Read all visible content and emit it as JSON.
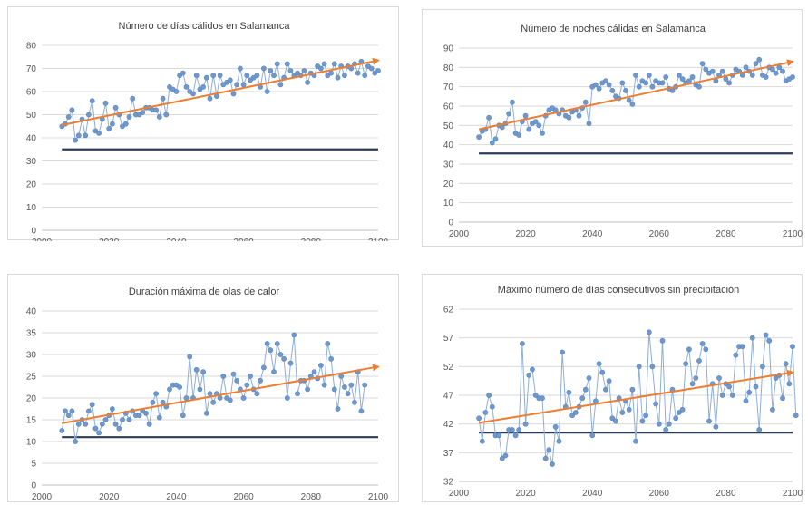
{
  "colors": {
    "series": "#8eaed6",
    "marker": "#6f98cc",
    "trend": "#ed7d31",
    "baseline": "#2e3b59"
  },
  "chart_data": [
    {
      "type": "line",
      "title": "Número de días cálidos en Salamanca",
      "ylim": [
        0,
        80
      ],
      "yticks": [
        0,
        10,
        20,
        30,
        40,
        50,
        60,
        70,
        80
      ],
      "xlim": [
        2000,
        2100
      ],
      "xticks": [
        2000,
        2020,
        2040,
        2060,
        2080,
        2100
      ],
      "baseline": 35,
      "trend": [
        [
          2006,
          45.5
        ],
        [
          2100,
          73.5
        ]
      ],
      "grid": true,
      "series": [
        {
          "x_start": 2006,
          "values": [
            45,
            46,
            49,
            52,
            39,
            41,
            48,
            41,
            50,
            56,
            43,
            42,
            48,
            55,
            44,
            46,
            53,
            50,
            45,
            46,
            49,
            57,
            50,
            50,
            51,
            53,
            53,
            52,
            52,
            49,
            57,
            50,
            62,
            61,
            60,
            67,
            68,
            62,
            60,
            59,
            67,
            61,
            62,
            66,
            57,
            67,
            58,
            67,
            63,
            64,
            65,
            59,
            63,
            70,
            63,
            67,
            65,
            66,
            67,
            62,
            70,
            60,
            69,
            67,
            72,
            63,
            66,
            72,
            69,
            67,
            68,
            67,
            69,
            64,
            68,
            67,
            71,
            70,
            72,
            67,
            68,
            72,
            66,
            71,
            67,
            71,
            70,
            72,
            68,
            73,
            67,
            71,
            70,
            68,
            69
          ]
        }
      ]
    },
    {
      "type": "line",
      "title": "Número de noches cálidas en Salamanca",
      "ylim": [
        0,
        90
      ],
      "yticks": [
        0,
        10,
        20,
        30,
        40,
        50,
        60,
        70,
        80,
        90
      ],
      "xlim": [
        2000,
        2100
      ],
      "xticks": [
        2000,
        2020,
        2040,
        2060,
        2080,
        2100
      ],
      "baseline": 35.5,
      "trend": [
        [
          2006,
          48
        ],
        [
          2100,
          83
        ]
      ],
      "grid": true,
      "series": [
        {
          "x_start": 2006,
          "values": [
            44,
            47,
            48,
            54,
            41,
            43,
            50,
            49,
            51,
            56,
            62,
            46,
            45,
            52,
            55,
            48,
            51,
            52,
            50,
            46,
            55,
            58,
            59,
            58,
            56,
            58,
            55,
            54,
            57,
            58,
            55,
            59,
            62,
            51,
            70,
            71,
            69,
            72,
            73,
            71,
            68,
            65,
            64,
            72,
            68,
            63,
            61,
            76,
            70,
            73,
            72,
            76,
            70,
            73,
            72,
            72,
            75,
            69,
            68,
            70,
            76,
            74,
            72,
            73,
            75,
            71,
            70,
            82,
            79,
            77,
            78,
            73,
            76,
            78,
            74,
            72,
            76,
            79,
            78,
            76,
            80,
            78,
            76,
            82,
            84,
            76,
            75,
            80,
            79,
            77,
            80,
            78,
            73,
            74,
            75
          ]
        }
      ]
    },
    {
      "type": "line",
      "title": "Duración máxima de olas de calor",
      "ylim": [
        0,
        40
      ],
      "yticks": [
        0,
        5,
        10,
        15,
        20,
        25,
        30,
        35,
        40
      ],
      "xlim": [
        2000,
        2100
      ],
      "xticks": [
        2000,
        2020,
        2040,
        2060,
        2080,
        2100
      ],
      "baseline": 11,
      "trend": [
        [
          2006,
          14.2
        ],
        [
          2100,
          27.2
        ]
      ],
      "grid": true,
      "series": [
        {
          "x_start": 2006,
          "values": [
            12.5,
            17,
            16,
            17,
            10,
            14,
            15,
            14,
            17,
            18.5,
            13,
            12,
            14,
            15,
            16,
            17.5,
            14,
            13,
            15,
            16.5,
            15,
            17,
            16,
            16,
            17,
            16.5,
            14,
            19,
            21,
            15.5,
            19,
            18,
            22,
            23,
            23,
            22.5,
            16,
            20,
            29.5,
            20,
            26.5,
            22,
            26,
            16.5,
            21,
            19,
            21,
            20,
            25,
            20,
            19.5,
            25.5,
            24,
            22,
            20,
            23,
            25,
            22,
            21,
            24,
            27,
            32.5,
            31,
            26,
            32.5,
            30,
            29,
            20,
            28,
            34.5,
            21,
            24,
            24,
            22,
            25,
            26,
            24.5,
            27.5,
            23,
            32.5,
            29,
            22,
            17.5,
            25,
            22.5,
            21,
            23,
            19,
            26,
            17,
            23
          ]
        }
      ]
    },
    {
      "type": "line",
      "title": "Máximo número de días consecutivos sin precipitación",
      "ylim": [
        32,
        62
      ],
      "yticks": [
        32,
        37,
        42,
        47,
        52,
        57,
        62
      ],
      "xlim": [
        2000,
        2100
      ],
      "xticks": [
        2000,
        2020,
        2040,
        2060,
        2080,
        2100
      ],
      "baseline": 40.5,
      "trend": [
        [
          2006,
          42.2
        ],
        [
          2100,
          51
        ]
      ],
      "grid": true,
      "series": [
        {
          "x_start": 2006,
          "values": [
            43,
            39,
            44,
            47,
            45,
            40,
            40,
            36,
            36.5,
            41,
            41,
            40,
            41,
            56,
            42,
            50.5,
            51.5,
            47,
            46.5,
            46.5,
            36,
            37.5,
            35,
            41.5,
            39,
            54.5,
            45,
            47.5,
            43.5,
            44,
            45,
            46.5,
            48,
            50,
            40,
            46,
            52.5,
            51,
            48,
            49.5,
            43,
            42.5,
            46.5,
            44,
            46,
            44.5,
            48,
            39,
            52,
            42.5,
            43.5,
            58,
            52,
            45.5,
            42,
            56.5,
            41,
            42,
            48,
            43,
            44,
            44.5,
            52.5,
            55,
            49,
            50,
            53,
            56,
            55,
            42.5,
            49,
            41.5,
            50,
            47,
            49,
            48.5,
            47,
            54,
            55.5,
            55.5,
            46,
            47.5,
            57,
            48.5,
            41,
            52,
            57.5,
            56.5,
            44.5,
            50,
            50.5,
            46.5,
            52.5,
            49,
            55.5,
            43.5
          ]
        }
      ]
    }
  ]
}
